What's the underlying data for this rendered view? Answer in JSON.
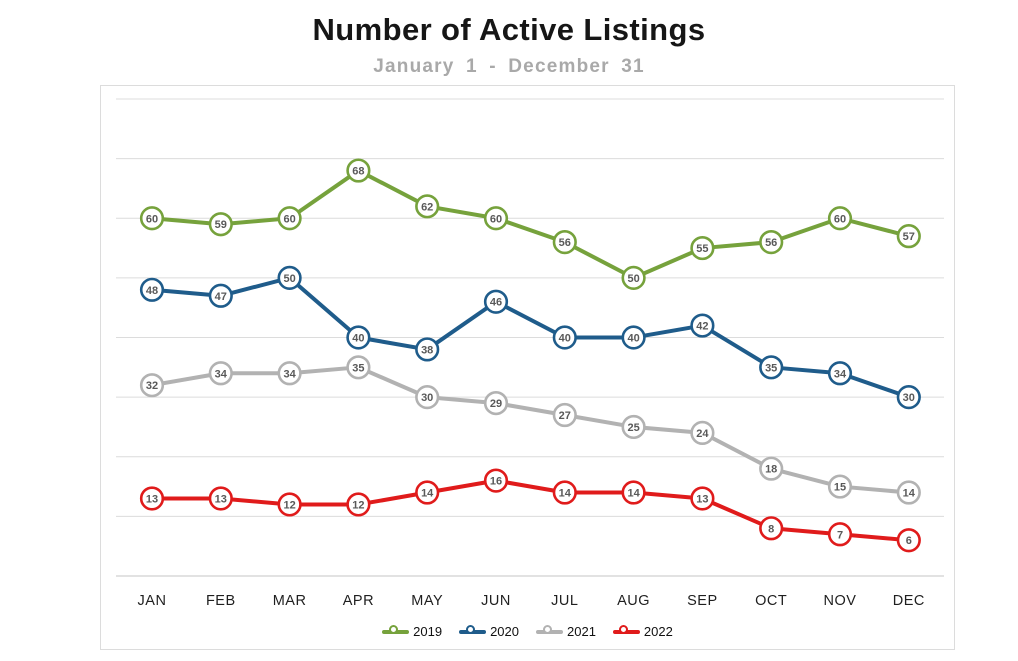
{
  "header": {
    "title": "Number of Active Listings",
    "subtitle": "January 1 - December 31"
  },
  "chart_data": {
    "type": "line",
    "title": "Number of Active Listings",
    "subtitle": "January 1 - December 31",
    "categories": [
      "JAN",
      "FEB",
      "MAR",
      "APR",
      "MAY",
      "JUN",
      "JUL",
      "AUG",
      "SEP",
      "OCT",
      "NOV",
      "DEC"
    ],
    "series": [
      {
        "name": "2019",
        "color": "#76A23C",
        "values": [
          60,
          59,
          60,
          68,
          62,
          60,
          56,
          50,
          55,
          56,
          60,
          57
        ]
      },
      {
        "name": "2020",
        "color": "#1F5C8B",
        "values": [
          48,
          47,
          50,
          40,
          38,
          46,
          40,
          40,
          42,
          35,
          34,
          30
        ]
      },
      {
        "name": "2021",
        "color": "#B2B2B2",
        "values": [
          32,
          34,
          34,
          35,
          30,
          29,
          27,
          25,
          24,
          18,
          15,
          14
        ]
      },
      {
        "name": "2022",
        "color": "#E01B1B",
        "values": [
          13,
          13,
          12,
          12,
          14,
          16,
          14,
          14,
          13,
          8,
          7,
          6
        ]
      }
    ],
    "ylim": [
      0,
      80
    ],
    "gridline_step": 10,
    "grid": "horizontal",
    "yaxis_tick_labels_visible": false,
    "marker_style": "circle-with-value",
    "legend_position": "bottom-center",
    "colors": {
      "gridline": "#dcdcdc",
      "axis_line": "#c6c6c6",
      "marker_fill": "#ffffff",
      "value_label": "#595959",
      "xaxis_label": "#1f1f1f",
      "panel_border": "#dcdcdc",
      "title": "#161616",
      "subtitle": "#a9a9a9"
    }
  }
}
